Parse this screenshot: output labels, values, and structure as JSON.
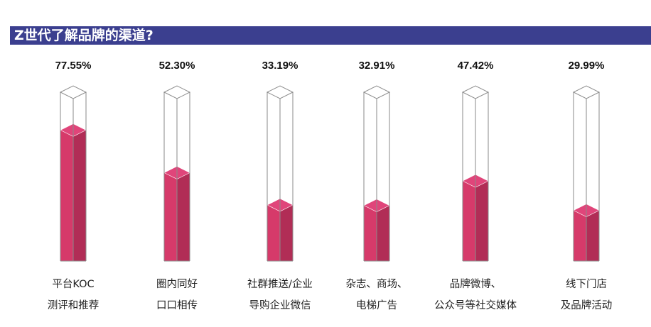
{
  "title": "Z世代了解品牌的渠道?",
  "colors": {
    "title_bar": "#3b3f8f",
    "fill_front": "#d63a6a",
    "fill_side": "#b12d56",
    "fill_top": "#e0457a",
    "outline": "#8a8a8a"
  },
  "chart_data": {
    "type": "bar",
    "categories": [
      [
        "平台KOC",
        "测评和推荐"
      ],
      [
        "圈内同好",
        "口口相传"
      ],
      [
        "社群推送/企业",
        "导购企业微信"
      ],
      [
        "杂志、商场、",
        "电梯广告"
      ],
      [
        "品牌微博、",
        "公众号等社交媒体"
      ],
      [
        "线下门店",
        "及品牌活动"
      ]
    ],
    "values": [
      77.55,
      52.3,
      33.19,
      32.91,
      47.42,
      29.99
    ],
    "value_labels": [
      "77.55%",
      "52.30%",
      "33.19%",
      "32.91%",
      "47.42%",
      "29.99%"
    ],
    "ylim": [
      0,
      100
    ],
    "grid": false,
    "legend": "none"
  }
}
